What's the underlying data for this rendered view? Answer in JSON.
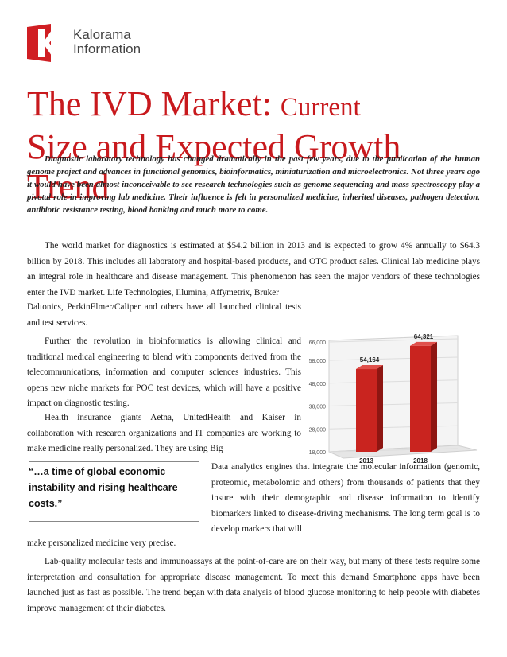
{
  "brand": {
    "line1": "Kalorama",
    "line2": "Information",
    "color": "#d01e23"
  },
  "title": {
    "line1_a": "The IVD Market: ",
    "line1_b": "Current",
    "line2": "Size and Expected Growth Trend"
  },
  "lead": "Diagnostic laboratory technology has changed dramatically in the past few years, due to the publication of the human genome project and advances in functional genomics, bioinformatics, miniaturization and microelectronics.  Not three years ago it would have been almost inconceivable to see research technologies such as genome sequencing and mass spectroscopy play a pivotal role in improving lab medicine.  Their influence is felt in personalized medicine, inherited diseases, pathogen detection, antibiotic resistance testing, blood banking and much more to come.",
  "para1_full": "The world market for diagnostics is estimated at $54.2 billion in 2013 and is expected to grow 4% annually to $64.3 billion by 2018.  This includes all laboratory and hospital-based products, and OTC product sales.  Clinical lab medicine plays an integral role in healthcare and disease management.  This phenomenon has seen the major vendors of these technologies enter the IVD market.  Life Technologies, Illumina, Affymetrix, Bruker",
  "para1_tail": "Daltonics, PerkinElmer/Caliper and others have all launched clinical tests and test services.",
  "para2": "Further the revolution in bioinformatics is allowing clinical and traditional medical engineering to blend with components derived from the telecommunications, information and computer sciences industries.  This opens new niche markets for POC test devices, which will have a positive impact on diagnostic testing.",
  "para3": "Health insurance giants Aetna, UnitedHealth and Kaiser in collaboration with research organizations and IT companies are working to make medicine really personalized.  They are using Big",
  "quote": "“…a time of global economic instability and rising healthcare costs.”",
  "para3_cont": "Data analytics engines that integrate the molecular information (genomic, proteomic, metabolomic and others) from thousands of patients that they insure with their demographic and disease information to identify biomarkers linked to disease-driving mechanisms.  The long term goal is to develop markers that will",
  "para3_end": "make personalized medicine very precise.",
  "para4": "Lab-quality molecular tests and immunoassays at the point-of-care are on their way, but many of these tests require some interpretation and consultation for appropriate disease management.  To meet this demand Smartphone apps have been launched just as fast as possible.  The trend began with data analysis of blood glucose monitoring to help people with diabetes improve management of their diabetes.",
  "chart_data": {
    "type": "bar",
    "categories": [
      "2013",
      "2018"
    ],
    "values": [
      54164,
      64321
    ],
    "data_labels": [
      "54,164",
      "64,321"
    ],
    "yticks": [
      "18,000",
      "28,000",
      "38,000",
      "48,000",
      "58,000",
      "66,000"
    ],
    "ylim": [
      18000,
      66000
    ],
    "bar_color": "#c9241f",
    "title": "",
    "xlabel": "",
    "ylabel": ""
  }
}
